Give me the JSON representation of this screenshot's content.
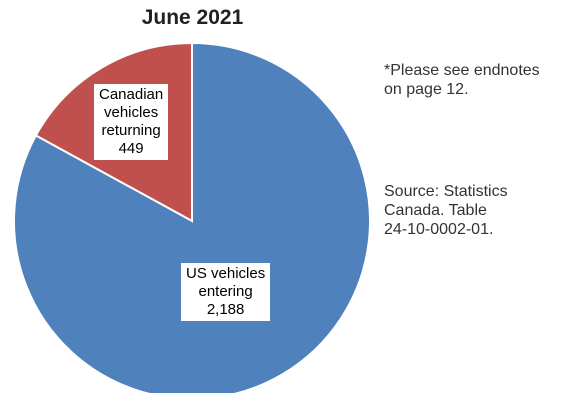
{
  "chart_data": {
    "type": "pie",
    "title": "June 2021",
    "series": [
      {
        "name": "",
        "values": [
          449,
          2188
        ]
      }
    ],
    "categories": [
      "Canadian vehicles returning",
      "US vehicles entering"
    ],
    "slices": [
      {
        "label_lines": [
          "Canadian",
          "vehicles",
          "returning"
        ],
        "value": 449,
        "value_text": "449",
        "color": "#c0504d"
      },
      {
        "label_lines": [
          "US vehicles",
          "entering"
        ],
        "value": 2188,
        "value_text": "2,188",
        "color": "#4f81bd"
      }
    ],
    "start_angle_deg": 0,
    "direction": "counterclockwise",
    "slice_border_color": "#ffffff"
  },
  "notes": {
    "endnote": "*Please see endnotes\non page 12.",
    "source": "Source: Statistics\nCanada. Table\n24-10-0002-01."
  }
}
